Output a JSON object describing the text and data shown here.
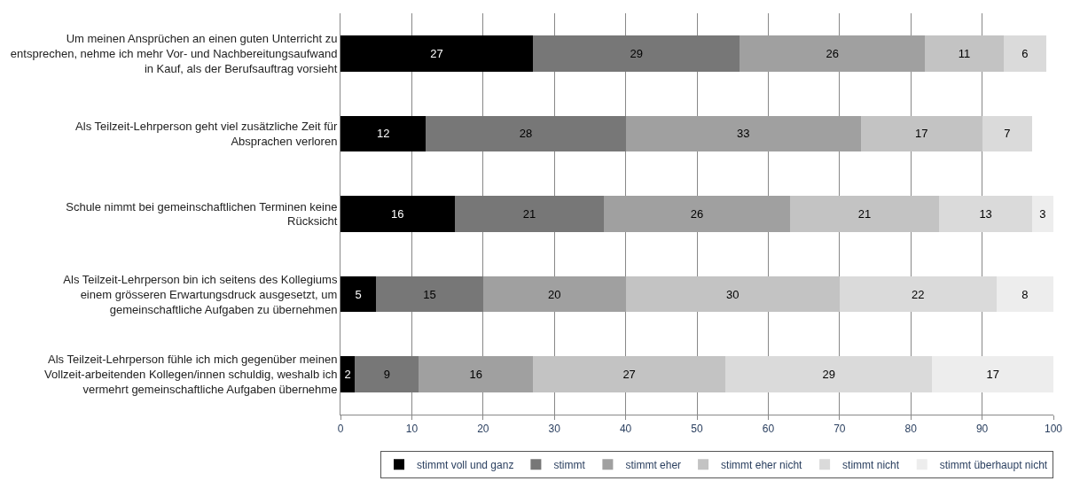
{
  "chart_data": {
    "type": "bar",
    "orientation": "horizontal",
    "stacked": true,
    "data_labels": true,
    "grid": "x",
    "legend": "bottom",
    "categories": [
      "Um meinen Ansprüchen an einen guten Unterricht zu entsprechen, nehme ich mehr Vor- und Nachbereitungsaufwand in Kauf, als der Berufsauftrag vorsieht",
      "Als Teilzeit-Lehrperson geht viel zusätzliche Zeit für Absprachen verloren",
      "Schule nimmt bei gemeinschaftlichen Terminen keine Rücksicht",
      "Als Teilzeit-Lehrperson bin ich seitens des Kollegiums einem grösseren Erwartungsdruck ausgesetzt, um gemeinschaftliche Aufgaben zu übernehmen",
      "Als Teilzeit-Lehrperson fühle ich mich gegenüber meinen Vollzeit-arbeitenden Kollegen/innen schuldig, weshalb ich vermehrt gemeinschaftliche Aufgaben übernehme"
    ],
    "xlim": [
      0,
      100
    ],
    "xticks": [
      0,
      10,
      20,
      30,
      40,
      50,
      60,
      70,
      80,
      90,
      100
    ],
    "series": [
      {
        "name": "stimmt voll und ganz",
        "color": "#000000",
        "values": [
          27,
          12,
          16,
          5,
          2
        ]
      },
      {
        "name": "stimmt",
        "color": "#777777",
        "values": [
          29,
          28,
          21,
          15,
          9
        ]
      },
      {
        "name": "stimmt eher",
        "color": "#a0a0a0",
        "values": [
          26,
          33,
          26,
          20,
          16
        ]
      },
      {
        "name": "stimmt eher nicht",
        "color": "#c3c3c3",
        "values": [
          11,
          17,
          21,
          30,
          27
        ]
      },
      {
        "name": "stimmt nicht",
        "color": "#dadada",
        "values": [
          6,
          7,
          13,
          22,
          29
        ]
      },
      {
        "name": "stimmt überhaupt nicht",
        "color": "#ededed",
        "values": [
          null,
          null,
          3,
          8,
          17
        ]
      }
    ]
  }
}
